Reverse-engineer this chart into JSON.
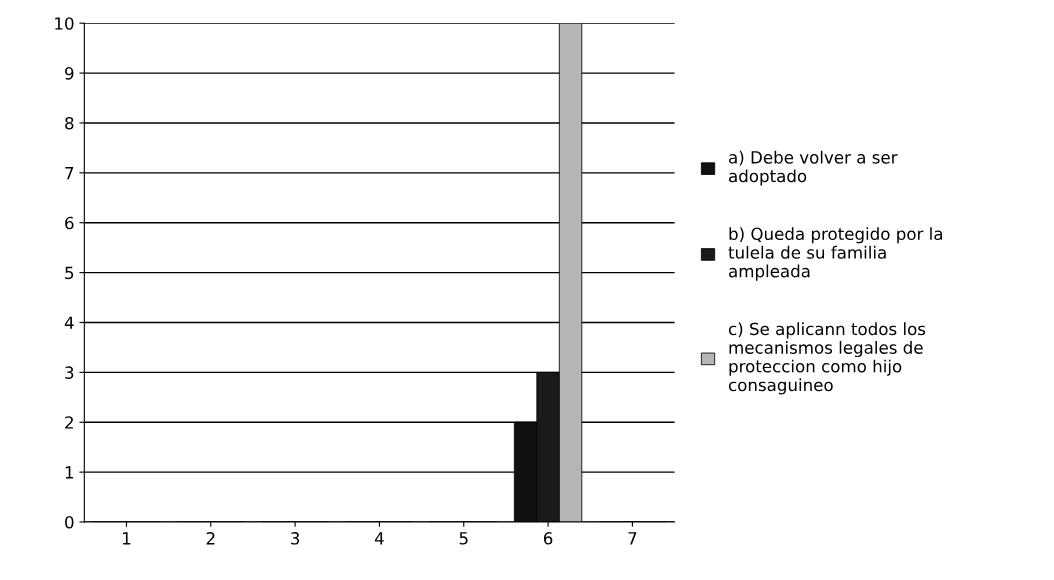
{
  "chart_data": {
    "type": "bar",
    "categories": [
      "1",
      "2",
      "3",
      "4",
      "5",
      "6",
      "7"
    ],
    "series": [
      {
        "name": "a) Debe volver a ser adoptado",
        "color": "#111111",
        "values": [
          0,
          0,
          0,
          0,
          0,
          2,
          0
        ]
      },
      {
        "name": "b) Queda protegido por la tulela de su familia ampleada",
        "color": "#1a1a1a",
        "values": [
          0,
          0,
          0,
          0,
          0,
          3,
          0
        ]
      },
      {
        "name": "c) Se aplicann todos los mecanismos legales de proteccion como hijo consaguineo",
        "color": "#b5b5b5",
        "values": [
          0,
          0,
          0,
          0,
          0,
          10,
          0
        ]
      }
    ],
    "ylim": [
      0,
      10
    ],
    "yticks": [
      0,
      1,
      2,
      3,
      4,
      5,
      6,
      7,
      8,
      9,
      10
    ],
    "grid": "y",
    "legend": "right"
  }
}
